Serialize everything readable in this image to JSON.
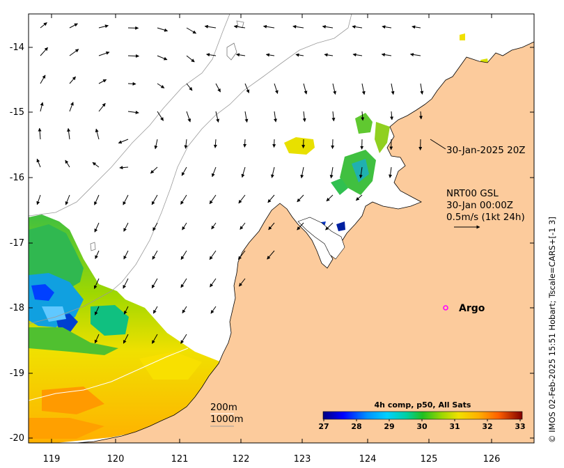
{
  "axes": {
    "x_ticks": [
      "119",
      "120",
      "121",
      "122",
      "123",
      "124",
      "125",
      "126"
    ],
    "y_ticks": [
      "-14",
      "-15",
      "-16",
      "-17",
      "-18",
      "-19",
      "-20"
    ]
  },
  "annotations": {
    "timestamp": "30-Jan-2025 20Z",
    "current_source": "NRT00 GSL",
    "current_time": "30-Jan 00:00Z",
    "current_scale": "0.5m/s (1kt 24h)",
    "argo_label": "Argo",
    "depth_200": "200m",
    "depth_1000": "1000m"
  },
  "colorbar": {
    "title": "4h comp, p50, All Sats",
    "ticks": [
      "27",
      "28",
      "29",
      "30",
      "31",
      "32",
      "33"
    ]
  },
  "credit": "© IMOS 02-Feb-2025 15:51 Hobart; Tscale=CARS+[-1 3]",
  "colors": {
    "land": "#fccb9c",
    "ocean": "#ffffff",
    "frame": "#000000",
    "argo_marker": "#ff00ff",
    "isobath": "#9a9a9a",
    "sst_scale": [
      "#000080",
      "#0000ff",
      "#0080ff",
      "#00c0ff",
      "#00e0c0",
      "#20c020",
      "#80d000",
      "#e0e000",
      "#ffc000",
      "#ff8000",
      "#e02000",
      "#800000"
    ]
  }
}
